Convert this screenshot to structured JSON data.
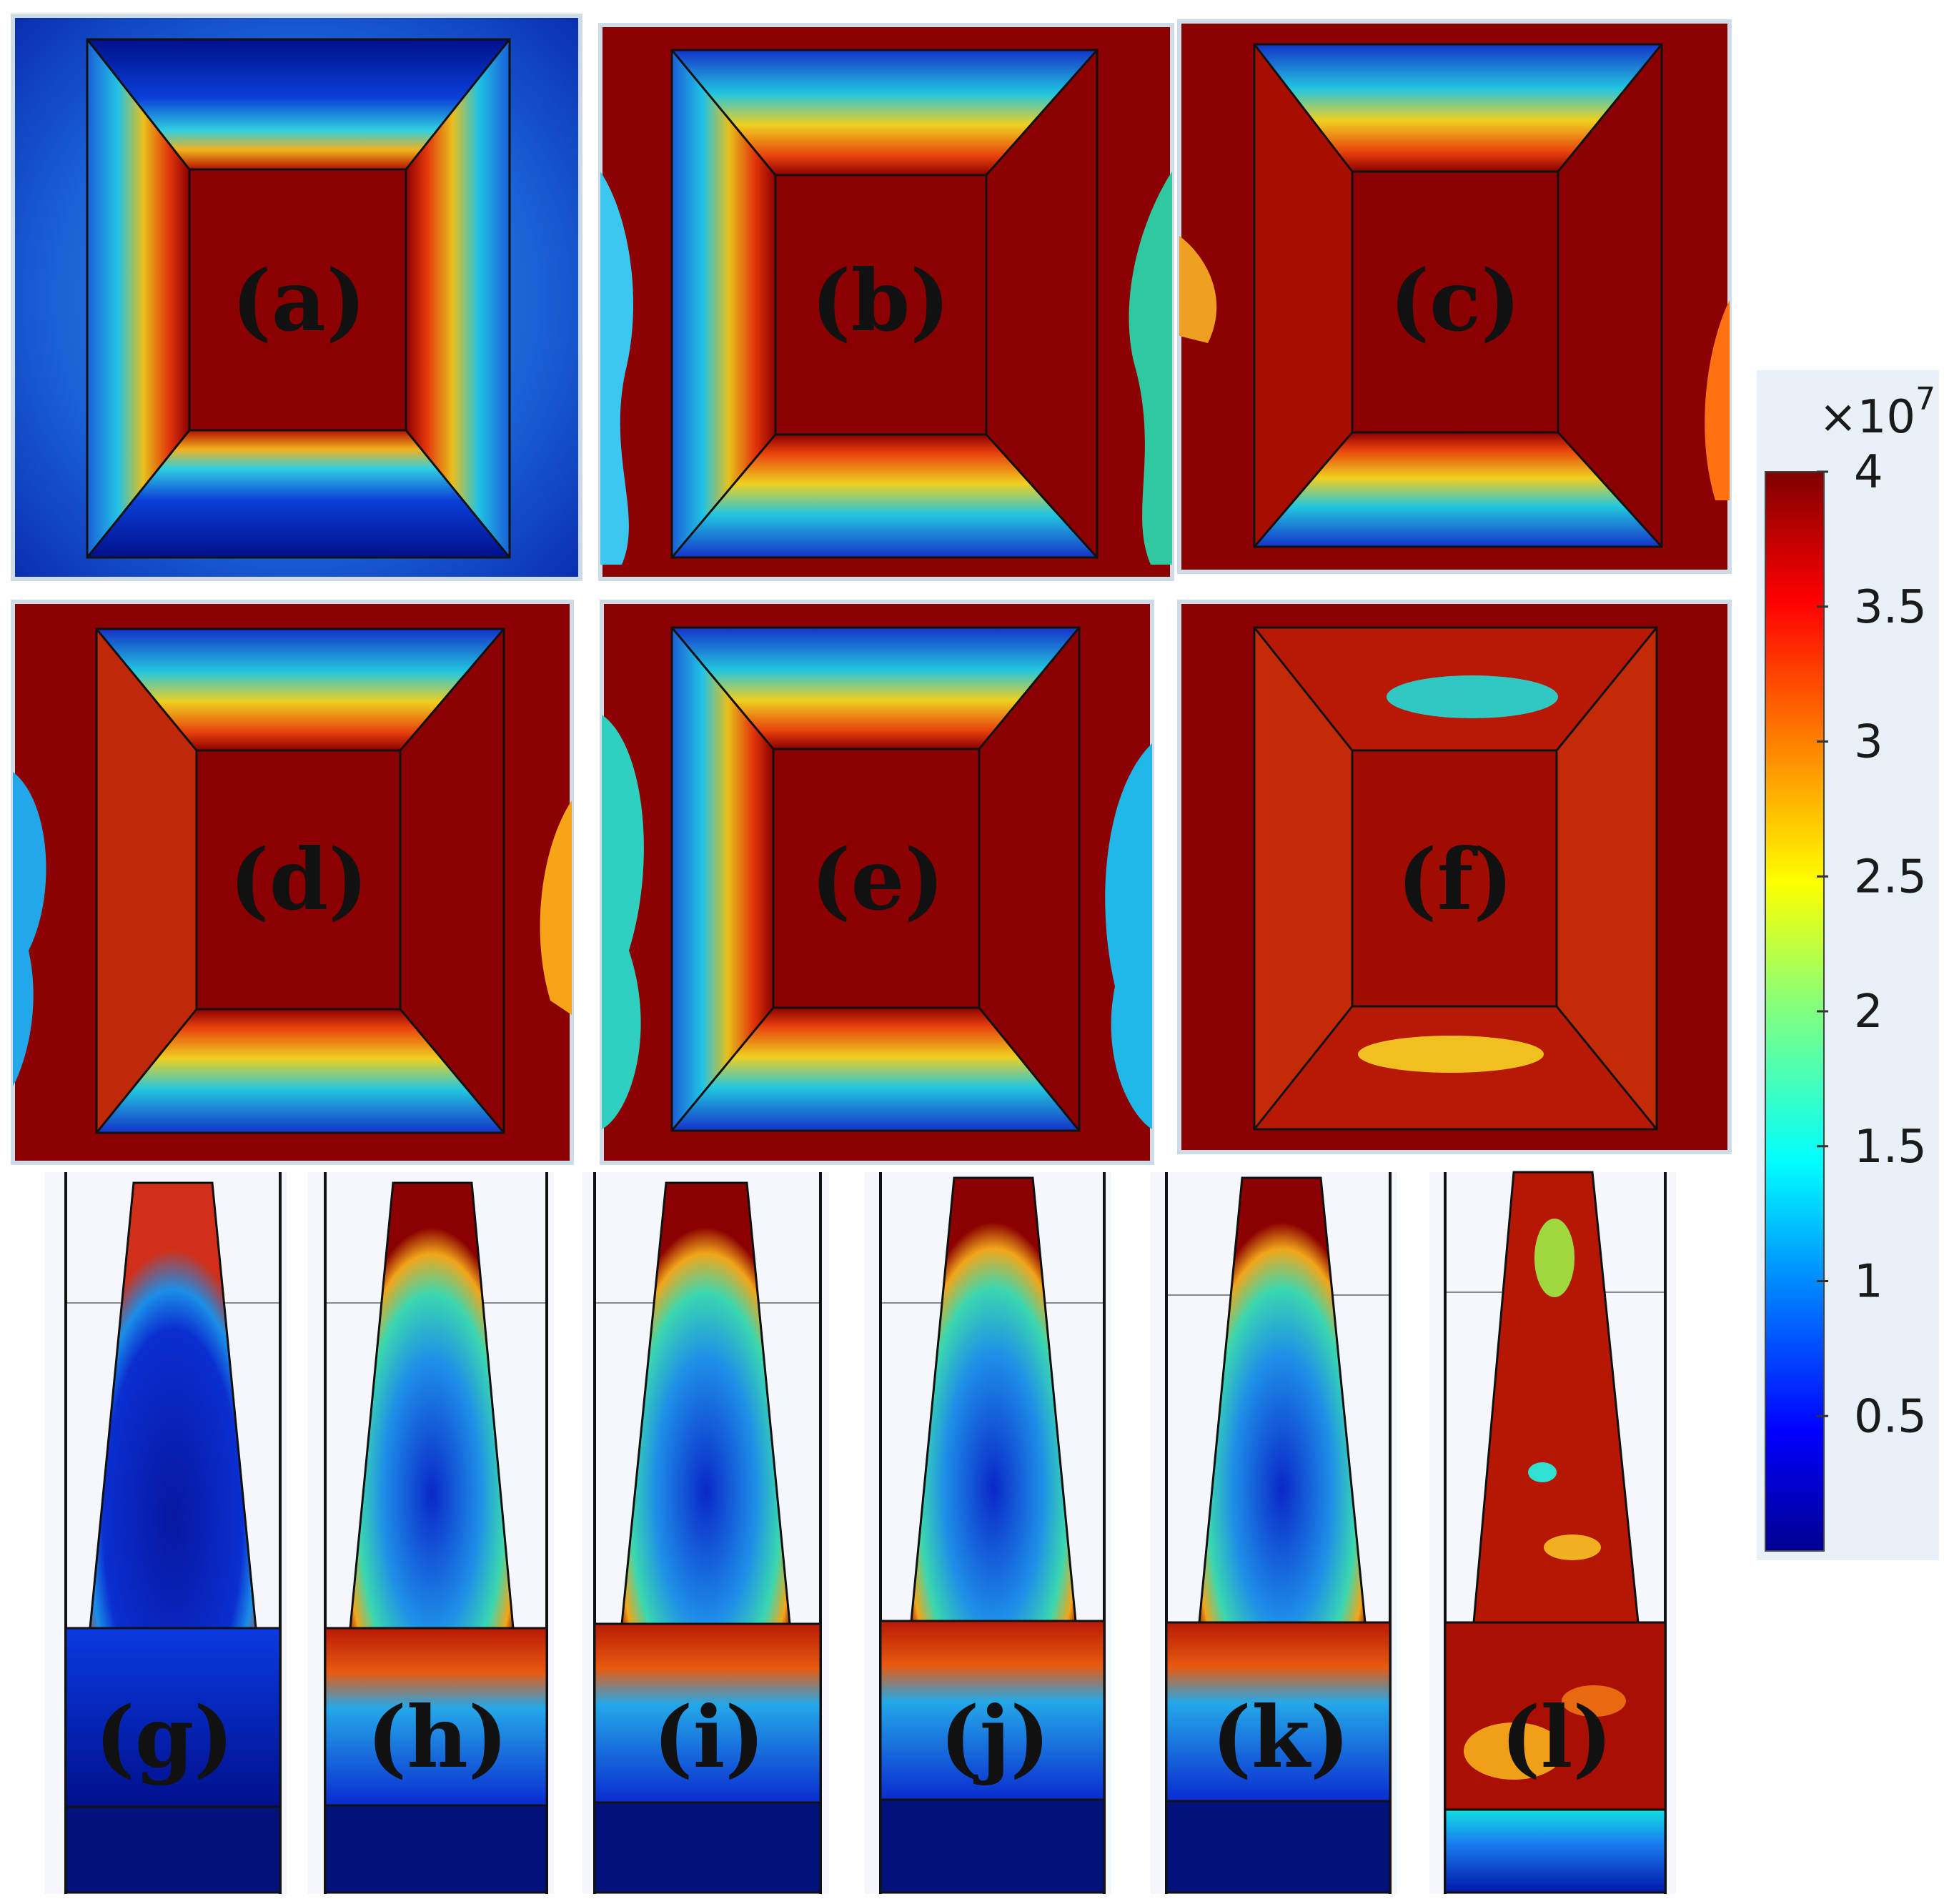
{
  "figure": {
    "panel_labels": [
      "(a)",
      "(b)",
      "(c)",
      "(d)",
      "(e)",
      "(f)",
      "(g)",
      "(h)",
      "(i)",
      "(j)",
      "(k)",
      "(l)"
    ],
    "colorbar": {
      "multiplier": "×10",
      "exponent": "7",
      "ticks": [
        "4",
        "3.5",
        "3",
        "2.5",
        "2",
        "1.5",
        "1",
        "0.5"
      ],
      "range": [
        0,
        4
      ],
      "colormap": [
        "#00008f",
        "#0000ff",
        "#0080ff",
        "#00ffff",
        "#80ff80",
        "#ffff00",
        "#ff8000",
        "#ff0000",
        "#800000"
      ]
    }
  }
}
